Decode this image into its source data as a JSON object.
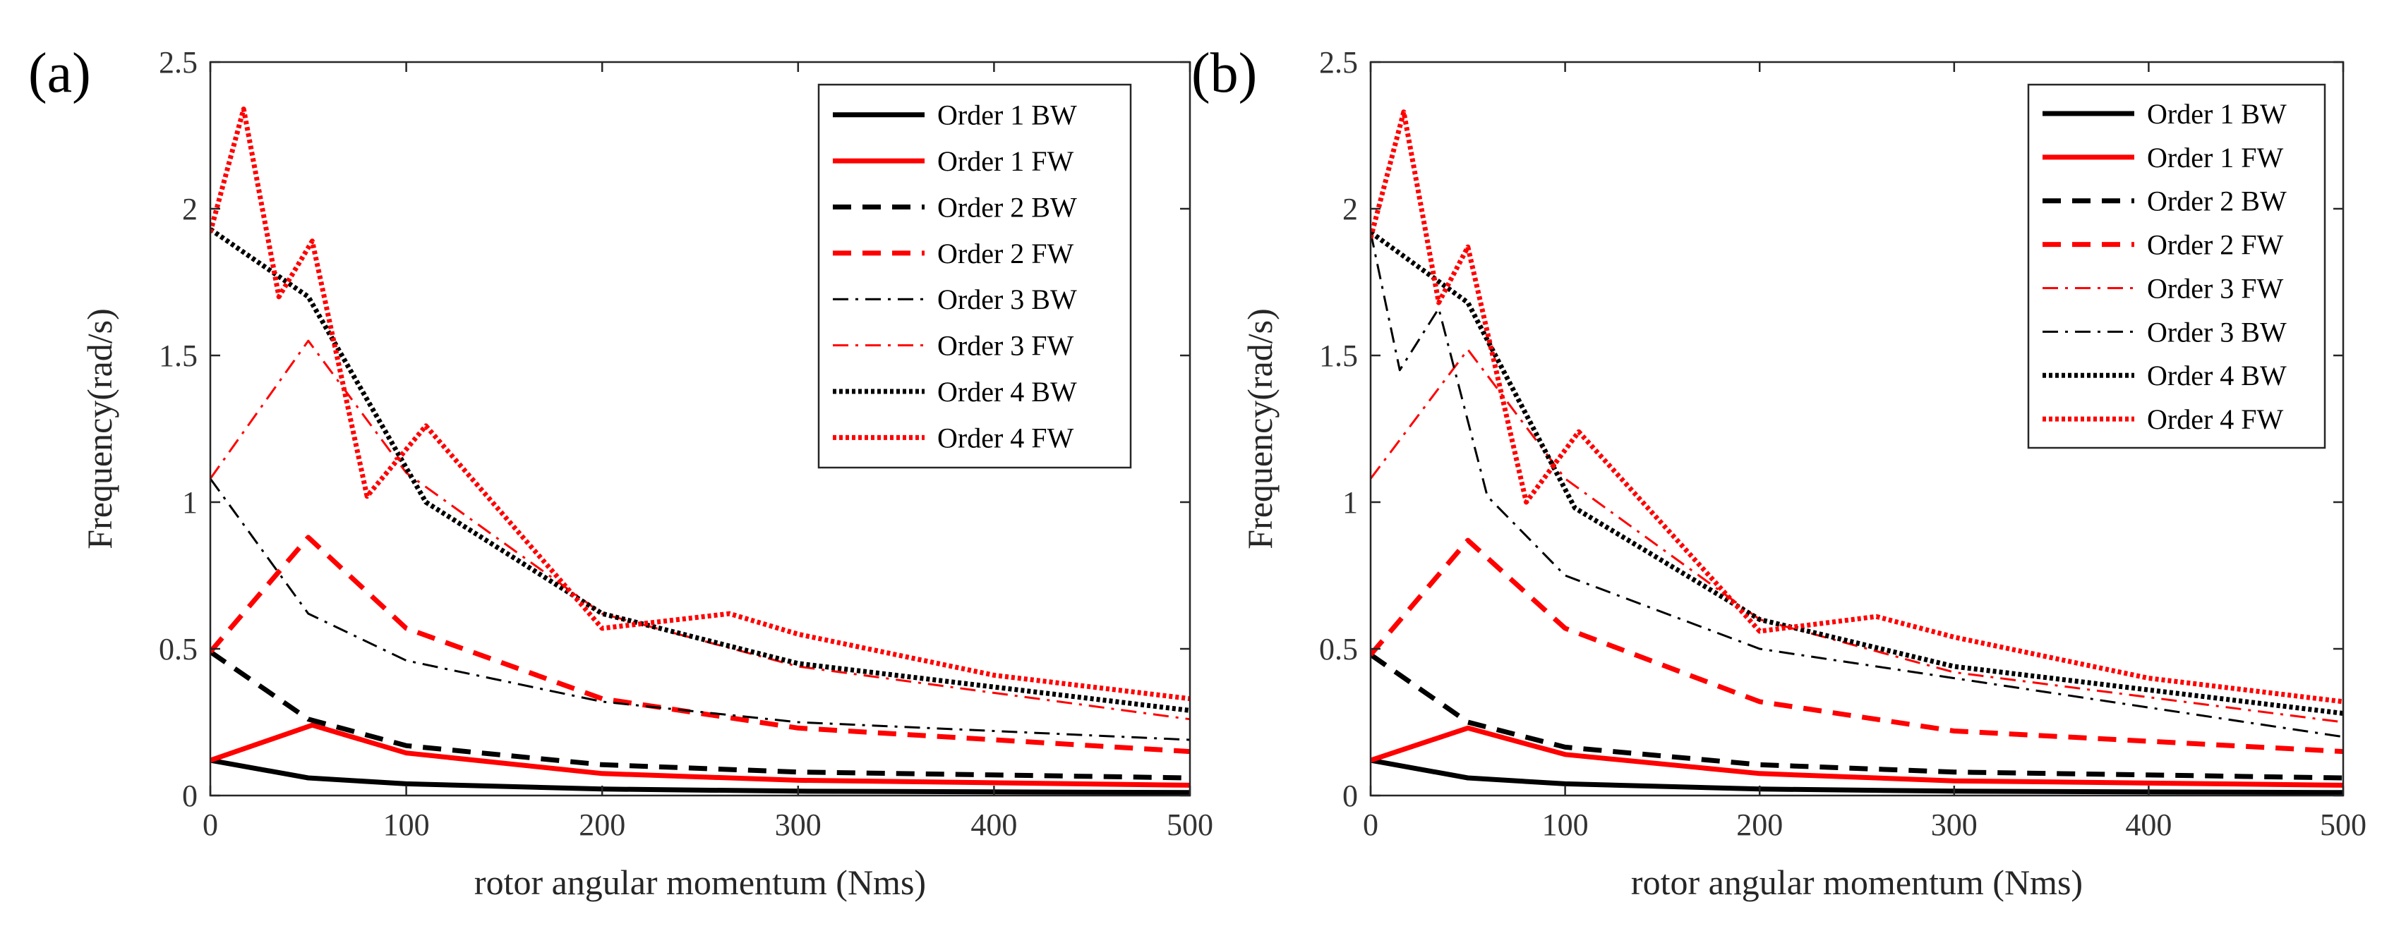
{
  "chart_data": [
    {
      "type": "line",
      "panel_label": "(a)",
      "xlabel": "rotor angular momentum (Nms)",
      "ylabel": "Frequency(rad/s)",
      "xlim": [
        0,
        500
      ],
      "ylim": [
        0,
        2.5
      ],
      "xticks": [
        "0",
        "100",
        "200",
        "300",
        "400",
        "500"
      ],
      "yticks": [
        "0",
        "0.5",
        "1",
        "1.5",
        "2",
        "2.5"
      ],
      "legend_position": "top-right",
      "series": [
        {
          "name": "Order 1 BW",
          "color": "#000000",
          "style": "solid",
          "width": "thick",
          "points": [
            [
              0,
              0.12
            ],
            [
              50,
              0.06
            ],
            [
              100,
              0.04
            ],
            [
              200,
              0.022
            ],
            [
              300,
              0.015
            ],
            [
              500,
              0.01
            ]
          ]
        },
        {
          "name": "Order 1 FW",
          "color": "#ff0000",
          "style": "solid",
          "width": "thick",
          "points": [
            [
              0,
              0.12
            ],
            [
              52,
              0.24
            ],
            [
              100,
              0.145
            ],
            [
              200,
              0.075
            ],
            [
              300,
              0.052
            ],
            [
              500,
              0.035
            ]
          ]
        },
        {
          "name": "Order 2 BW",
          "color": "#000000",
          "style": "dashed",
          "width": "thick",
          "points": [
            [
              0,
              0.49
            ],
            [
              50,
              0.26
            ],
            [
              100,
              0.17
            ],
            [
              200,
              0.105
            ],
            [
              300,
              0.08
            ],
            [
              500,
              0.06
            ]
          ]
        },
        {
          "name": "Order 2 FW",
          "color": "#ff0000",
          "style": "dashed",
          "width": "thick",
          "points": [
            [
              0,
              0.49
            ],
            [
              50,
              0.88
            ],
            [
              100,
              0.57
            ],
            [
              200,
              0.33
            ],
            [
              300,
              0.23
            ],
            [
              500,
              0.15
            ]
          ]
        },
        {
          "name": "Order 3 BW",
          "color": "#000000",
          "style": "dashdot",
          "width": "thin",
          "points": [
            [
              0,
              1.08
            ],
            [
              50,
              0.62
            ],
            [
              100,
              0.46
            ],
            [
              200,
              0.32
            ],
            [
              300,
              0.25
            ],
            [
              500,
              0.19
            ]
          ]
        },
        {
          "name": "Order 3 FW",
          "color": "#ff0000",
          "style": "dashdot",
          "width": "thin",
          "points": [
            [
              0,
              1.08
            ],
            [
              50,
              1.55
            ],
            [
              100,
              1.1
            ],
            [
              200,
              0.62
            ],
            [
              300,
              0.44
            ],
            [
              500,
              0.26
            ]
          ]
        },
        {
          "name": "Order 4 BW",
          "color": "#000000",
          "style": "dotted",
          "width": "thick",
          "points": [
            [
              0,
              1.93
            ],
            [
              50,
              1.7
            ],
            [
              110,
              1.0
            ],
            [
              200,
              0.62
            ],
            [
              300,
              0.45
            ],
            [
              500,
              0.29
            ]
          ]
        },
        {
          "name": "Order 4 FW",
          "color": "#ff0000",
          "style": "dotted",
          "width": "thick",
          "points": [
            [
              0,
              1.92
            ],
            [
              17,
              2.34
            ],
            [
              35,
              1.7
            ],
            [
              52,
              1.89
            ],
            [
              80,
              1.02
            ],
            [
              110,
              1.26
            ],
            [
              200,
              0.57
            ],
            [
              265,
              0.62
            ],
            [
              300,
              0.55
            ],
            [
              400,
              0.41
            ],
            [
              500,
              0.33
            ]
          ]
        }
      ]
    },
    {
      "type": "line",
      "panel_label": "(b)",
      "xlabel": "rotor angular momentum (Nms)",
      "ylabel": "Frequency(rad/s)",
      "xlim": [
        0,
        500
      ],
      "ylim": [
        0,
        2.5
      ],
      "xticks": [
        "0",
        "100",
        "200",
        "300",
        "400",
        "500"
      ],
      "yticks": [
        "0",
        "0.5",
        "1",
        "1.5",
        "2",
        "2.5"
      ],
      "legend_position": "top-right",
      "series": [
        {
          "name": "Order 1 BW",
          "color": "#000000",
          "style": "solid",
          "width": "thick",
          "points": [
            [
              0,
              0.12
            ],
            [
              50,
              0.06
            ],
            [
              100,
              0.04
            ],
            [
              200,
              0.022
            ],
            [
              300,
              0.015
            ],
            [
              500,
              0.01
            ]
          ]
        },
        {
          "name": "Order 1 FW",
          "color": "#ff0000",
          "style": "solid",
          "width": "thick",
          "points": [
            [
              0,
              0.12
            ],
            [
              50,
              0.23
            ],
            [
              100,
              0.14
            ],
            [
              200,
              0.075
            ],
            [
              300,
              0.05
            ],
            [
              500,
              0.035
            ]
          ]
        },
        {
          "name": "Order 2 BW",
          "color": "#000000",
          "style": "dashed",
          "width": "thick",
          "points": [
            [
              0,
              0.48
            ],
            [
              50,
              0.25
            ],
            [
              100,
              0.165
            ],
            [
              200,
              0.105
            ],
            [
              300,
              0.08
            ],
            [
              500,
              0.06
            ]
          ]
        },
        {
          "name": "Order 2 FW",
          "color": "#ff0000",
          "style": "dashed",
          "width": "thick",
          "points": [
            [
              0,
              0.48
            ],
            [
              50,
              0.87
            ],
            [
              100,
              0.57
            ],
            [
              200,
              0.32
            ],
            [
              300,
              0.22
            ],
            [
              500,
              0.15
            ]
          ]
        },
        {
          "name": "Order 3 FW",
          "color": "#ff0000",
          "style": "dashdot",
          "width": "thin",
          "points": [
            [
              0,
              1.08
            ],
            [
              50,
              1.52
            ],
            [
              100,
              1.08
            ],
            [
              200,
              0.6
            ],
            [
              300,
              0.42
            ],
            [
              500,
              0.25
            ]
          ]
        },
        {
          "name": "Order 3 BW",
          "color": "#000000",
          "style": "dashdot",
          "width": "thin",
          "points": [
            [
              0,
              1.92
            ],
            [
              15,
              1.45
            ],
            [
              35,
              1.66
            ],
            [
              60,
              1.02
            ],
            [
              100,
              0.75
            ],
            [
              200,
              0.5
            ],
            [
              300,
              0.4
            ],
            [
              500,
              0.2
            ]
          ]
        },
        {
          "name": "Order 4 BW",
          "color": "#000000",
          "style": "dotted",
          "width": "thick",
          "points": [
            [
              0,
              1.92
            ],
            [
              50,
              1.68
            ],
            [
              105,
              0.98
            ],
            [
              200,
              0.6
            ],
            [
              300,
              0.44
            ],
            [
              500,
              0.28
            ]
          ]
        },
        {
          "name": "Order 4 FW",
          "color": "#ff0000",
          "style": "dotted",
          "width": "thick",
          "points": [
            [
              0,
              1.9
            ],
            [
              17,
              2.33
            ],
            [
              35,
              1.68
            ],
            [
              50,
              1.87
            ],
            [
              80,
              1.0
            ],
            [
              107,
              1.24
            ],
            [
              200,
              0.56
            ],
            [
              260,
              0.61
            ],
            [
              300,
              0.54
            ],
            [
              400,
              0.4
            ],
            [
              500,
              0.32
            ]
          ]
        }
      ]
    }
  ]
}
